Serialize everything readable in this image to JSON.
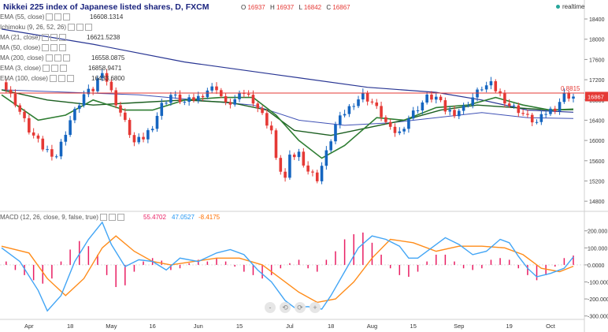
{
  "header": {
    "title": "Nikkei 225 index of Japanese listed shares, D, FXCM",
    "ohlc": [
      {
        "label": "O",
        "value": "16937"
      },
      {
        "label": "H",
        "value": "16937"
      },
      {
        "label": "L",
        "value": "16842"
      },
      {
        "label": "C",
        "value": "16867"
      }
    ],
    "realtime": "realtime"
  },
  "indicators": [
    {
      "name": "EMA (55, close)",
      "value": "16608.1314",
      "color": "#1b5e20"
    },
    {
      "name": "Ichimoku (9, 26, 52, 26)",
      "value": "",
      "color": "#9e9e9e"
    },
    {
      "name": "MA (21, close)",
      "value": "16621.5238",
      "color": "#2e7d32"
    },
    {
      "name": "MA (50, close)",
      "value": "",
      "color": "#3949ab"
    },
    {
      "name": "MA (200, close)",
      "value": "16558.0875",
      "color": "#283593"
    },
    {
      "name": "EMA (3, close)",
      "value": "16858.9471",
      "color": "#333333"
    },
    {
      "name": "EMA (100, close)",
      "value": "16433.6800",
      "color": "#6a5acd"
    }
  ],
  "macd_legend": {
    "name": "MACD (12, 26, close, 9, false, true)",
    "values": [
      {
        "value": "55.4702",
        "color": "#e91e63"
      },
      {
        "value": "47.0527",
        "color": "#2196f3"
      },
      {
        "value": "-8.4175",
        "color": "#ff6f00"
      }
    ]
  },
  "price_label": "16867",
  "level_label": "0.8815",
  "nav_buttons": [
    "-",
    "⟲",
    "⟳",
    "+"
  ],
  "colors": {
    "up": "#1565c0",
    "down": "#e53935",
    "level": "#e53935",
    "macd": "#42a5f5",
    "signal": "#ff8c1a",
    "hist": "#e91e63"
  },
  "chart_data": [
    {
      "type": "candlestick",
      "y_ticks": [
        "18400",
        "18000",
        "17600",
        "17200",
        "16800",
        "16400",
        "16000",
        "15600",
        "15200",
        "14800"
      ],
      "ylim": [
        14600,
        18650
      ],
      "x_ticks": [
        "Apr",
        "18",
        "May",
        "16",
        "Jun",
        "15",
        "Jul",
        "18",
        "Aug",
        "15",
        "Sep",
        "19",
        "Oct"
      ],
      "horizontal_level": 16937,
      "close_path": [
        [
          0,
          17150
        ],
        [
          3,
          16750
        ],
        [
          6,
          16200
        ],
        [
          9,
          15850
        ],
        [
          12,
          15700
        ],
        [
          15,
          16400
        ],
        [
          18,
          16900
        ],
        [
          20,
          17000
        ],
        [
          22,
          17400
        ],
        [
          24,
          16950
        ],
        [
          27,
          16350
        ],
        [
          29,
          15950
        ],
        [
          31,
          16050
        ],
        [
          33,
          16300
        ],
        [
          35,
          16700
        ],
        [
          37,
          16900
        ],
        [
          40,
          16750
        ],
        [
          43,
          16850
        ],
        [
          45,
          17000
        ],
        [
          47,
          17050
        ],
        [
          49,
          16700
        ],
        [
          51,
          16800
        ],
        [
          53,
          16950
        ],
        [
          55,
          16800
        ],
        [
          57,
          16500
        ],
        [
          59,
          16200
        ],
        [
          60,
          15600
        ],
        [
          62,
          15250
        ],
        [
          63,
          15650
        ],
        [
          65,
          15750
        ],
        [
          67,
          15400
        ],
        [
          69,
          15250
        ],
        [
          71,
          15750
        ],
        [
          73,
          16300
        ],
        [
          75,
          16550
        ],
        [
          77,
          16750
        ],
        [
          79,
          16900
        ],
        [
          81,
          16750
        ],
        [
          83,
          16500
        ],
        [
          85,
          16200
        ],
        [
          87,
          16150
        ],
        [
          89,
          16450
        ],
        [
          91,
          16650
        ],
        [
          93,
          16850
        ],
        [
          95,
          16850
        ],
        [
          97,
          16600
        ],
        [
          99,
          16550
        ],
        [
          101,
          16650
        ],
        [
          103,
          16850
        ],
        [
          105,
          17050
        ],
        [
          107,
          17100
        ],
        [
          109,
          16900
        ],
        [
          111,
          16700
        ],
        [
          113,
          16600
        ],
        [
          115,
          16450
        ],
        [
          117,
          16350
        ],
        [
          119,
          16550
        ],
        [
          121,
          16650
        ],
        [
          123,
          16900
        ],
        [
          125,
          16867
        ]
      ],
      "ema_55_path": [
        [
          0,
          17000
        ],
        [
          10,
          16800
        ],
        [
          20,
          16700
        ],
        [
          30,
          16750
        ],
        [
          40,
          16800
        ],
        [
          50,
          16750
        ],
        [
          58,
          16600
        ],
        [
          64,
          16200
        ],
        [
          72,
          16100
        ],
        [
          80,
          16250
        ],
        [
          88,
          16400
        ],
        [
          96,
          16600
        ],
        [
          104,
          16700
        ],
        [
          112,
          16650
        ],
        [
          120,
          16600
        ],
        [
          125,
          16608
        ]
      ],
      "ma_21_path": [
        [
          0,
          16900
        ],
        [
          8,
          16400
        ],
        [
          14,
          16500
        ],
        [
          20,
          16800
        ],
        [
          27,
          16600
        ],
        [
          33,
          16600
        ],
        [
          40,
          16800
        ],
        [
          48,
          16850
        ],
        [
          55,
          16850
        ],
        [
          60,
          16500
        ],
        [
          65,
          16000
        ],
        [
          70,
          15650
        ],
        [
          75,
          15900
        ],
        [
          82,
          16450
        ],
        [
          88,
          16400
        ],
        [
          95,
          16650
        ],
        [
          102,
          16700
        ],
        [
          108,
          16850
        ],
        [
          114,
          16700
        ],
        [
          120,
          16600
        ],
        [
          125,
          16621
        ]
      ],
      "ma_200_path": [
        [
          0,
          18200
        ],
        [
          20,
          17900
        ],
        [
          40,
          17550
        ],
        [
          60,
          17300
        ],
        [
          80,
          17050
        ],
        [
          95,
          16950
        ],
        [
          105,
          16800
        ],
        [
          115,
          16600
        ],
        [
          125,
          16558
        ]
      ],
      "ma_100_path": [
        [
          0,
          17000
        ],
        [
          30,
          16900
        ],
        [
          55,
          16700
        ],
        [
          65,
          16400
        ],
        [
          75,
          16300
        ],
        [
          85,
          16350
        ],
        [
          95,
          16450
        ],
        [
          105,
          16550
        ],
        [
          115,
          16450
        ],
        [
          125,
          16433
        ]
      ]
    },
    {
      "type": "line",
      "y_ticks": [
        "200.000",
        "100.000",
        "0.0000",
        "-100.000",
        "-200.000",
        "-300.000"
      ],
      "ylim": [
        -320,
        245
      ],
      "macd_path": [
        [
          0,
          100
        ],
        [
          4,
          20
        ],
        [
          8,
          -150
        ],
        [
          10,
          -270
        ],
        [
          13,
          -180
        ],
        [
          16,
          20
        ],
        [
          19,
          150
        ],
        [
          22,
          250
        ],
        [
          24,
          120
        ],
        [
          27,
          -10
        ],
        [
          30,
          30
        ],
        [
          33,
          20
        ],
        [
          36,
          -30
        ],
        [
          39,
          40
        ],
        [
          43,
          20
        ],
        [
          47,
          70
        ],
        [
          50,
          90
        ],
        [
          53,
          60
        ],
        [
          56,
          -30
        ],
        [
          59,
          -100
        ],
        [
          62,
          -210
        ],
        [
          64,
          -250
        ],
        [
          67,
          -245
        ],
        [
          70,
          -260
        ],
        [
          72,
          -180
        ],
        [
          75,
          -40
        ],
        [
          78,
          100
        ],
        [
          81,
          170
        ],
        [
          84,
          150
        ],
        [
          87,
          110
        ],
        [
          89,
          40
        ],
        [
          91,
          40
        ],
        [
          94,
          100
        ],
        [
          97,
          160
        ],
        [
          100,
          120
        ],
        [
          103,
          60
        ],
        [
          106,
          80
        ],
        [
          109,
          150
        ],
        [
          111,
          130
        ],
        [
          113,
          50
        ],
        [
          115,
          -20
        ],
        [
          117,
          -70
        ],
        [
          120,
          -50
        ],
        [
          123,
          -20
        ],
        [
          125,
          47
        ]
      ],
      "signal_path": [
        [
          0,
          110
        ],
        [
          6,
          70
        ],
        [
          10,
          -80
        ],
        [
          14,
          -180
        ],
        [
          18,
          -80
        ],
        [
          22,
          100
        ],
        [
          25,
          170
        ],
        [
          29,
          80
        ],
        [
          33,
          20
        ],
        [
          37,
          0
        ],
        [
          42,
          20
        ],
        [
          47,
          40
        ],
        [
          52,
          40
        ],
        [
          57,
          0
        ],
        [
          61,
          -80
        ],
        [
          65,
          -160
        ],
        [
          69,
          -220
        ],
        [
          73,
          -200
        ],
        [
          77,
          -100
        ],
        [
          81,
          40
        ],
        [
          85,
          150
        ],
        [
          90,
          130
        ],
        [
          95,
          80
        ],
        [
          100,
          110
        ],
        [
          105,
          110
        ],
        [
          110,
          100
        ],
        [
          114,
          60
        ],
        [
          118,
          -20
        ],
        [
          122,
          -40
        ],
        [
          125,
          -8
        ]
      ],
      "histogram": [
        {
          "x": 1,
          "v": 20
        },
        {
          "x": 3,
          "v": -30
        },
        {
          "x": 5,
          "v": -60
        },
        {
          "x": 7,
          "v": -90
        },
        {
          "x": 9,
          "v": -110
        },
        {
          "x": 11,
          "v": -80
        },
        {
          "x": 13,
          "v": 20
        },
        {
          "x": 15,
          "v": 90
        },
        {
          "x": 17,
          "v": 140
        },
        {
          "x": 19,
          "v": 110
        },
        {
          "x": 21,
          "v": 60
        },
        {
          "x": 23,
          "v": -60
        },
        {
          "x": 25,
          "v": -130
        },
        {
          "x": 27,
          "v": -120
        },
        {
          "x": 29,
          "v": -40
        },
        {
          "x": 31,
          "v": 20
        },
        {
          "x": 33,
          "v": 40
        },
        {
          "x": 35,
          "v": 25
        },
        {
          "x": 37,
          "v": -30
        },
        {
          "x": 39,
          "v": -20
        },
        {
          "x": 41,
          "v": 10
        },
        {
          "x": 43,
          "v": 30
        },
        {
          "x": 45,
          "v": 20
        },
        {
          "x": 47,
          "v": 40
        },
        {
          "x": 49,
          "v": 20
        },
        {
          "x": 51,
          "v": -10
        },
        {
          "x": 53,
          "v": -40
        },
        {
          "x": 55,
          "v": -60
        },
        {
          "x": 57,
          "v": -80
        },
        {
          "x": 59,
          "v": -60
        },
        {
          "x": 61,
          "v": -20
        },
        {
          "x": 63,
          "v": 10
        },
        {
          "x": 65,
          "v": 30
        },
        {
          "x": 67,
          "v": -20
        },
        {
          "x": 69,
          "v": -40
        },
        {
          "x": 71,
          "v": 30
        },
        {
          "x": 73,
          "v": 80
        },
        {
          "x": 75,
          "v": 150
        },
        {
          "x": 77,
          "v": 180
        },
        {
          "x": 79,
          "v": 190
        },
        {
          "x": 81,
          "v": 130
        },
        {
          "x": 83,
          "v": 60
        },
        {
          "x": 85,
          "v": -20
        },
        {
          "x": 87,
          "v": -60
        },
        {
          "x": 89,
          "v": -70
        },
        {
          "x": 91,
          "v": -40
        },
        {
          "x": 93,
          "v": 20
        },
        {
          "x": 95,
          "v": 60
        },
        {
          "x": 97,
          "v": 60
        },
        {
          "x": 99,
          "v": 20
        },
        {
          "x": 101,
          "v": -20
        },
        {
          "x": 103,
          "v": -30
        },
        {
          "x": 105,
          "v": -20
        },
        {
          "x": 107,
          "v": 30
        },
        {
          "x": 109,
          "v": 40
        },
        {
          "x": 111,
          "v": 30
        },
        {
          "x": 113,
          "v": -20
        },
        {
          "x": 115,
          "v": -60
        },
        {
          "x": 117,
          "v": -90
        },
        {
          "x": 119,
          "v": -60
        },
        {
          "x": 121,
          "v": -10
        },
        {
          "x": 123,
          "v": 40
        },
        {
          "x": 125,
          "v": 55
        }
      ]
    }
  ]
}
